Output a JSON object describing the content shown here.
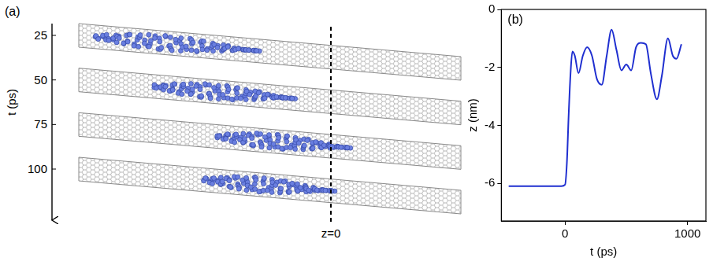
{
  "diagram": {
    "label": "(a)",
    "axis_label": "t (ps)",
    "ticks": [
      25,
      50,
      75,
      100
    ],
    "marker_label": "z=0"
  },
  "chart_data": {
    "type": "line",
    "label": "(b)",
    "x_label": "t (ps)",
    "y_label": "z (nm)",
    "x": [
      -460,
      -300,
      -150,
      -30,
      0,
      15,
      30,
      45,
      60,
      80,
      110,
      145,
      180,
      220,
      260,
      300,
      340,
      380,
      420,
      460,
      500,
      540,
      580,
      620,
      660,
      700,
      750,
      790,
      840,
      880,
      910,
      950
    ],
    "values": [
      -6.1,
      -6.1,
      -6.1,
      -6.1,
      -6.05,
      -5.3,
      -3.6,
      -2.2,
      -1.45,
      -1.6,
      -2.2,
      -1.6,
      -1.3,
      -1.6,
      -2.4,
      -2.6,
      -1.6,
      -0.7,
      -1.4,
      -2.1,
      -1.9,
      -2.1,
      -1.3,
      -1.15,
      -1.2,
      -2.2,
      -3.1,
      -2.3,
      -1.0,
      -1.6,
      -1.7,
      -1.2
    ],
    "color": "#1f2fd0",
    "xlim": [
      -520,
      1150
    ],
    "xticks": [
      0,
      1000
    ],
    "ylim": [
      -7.3,
      0
    ],
    "yticks": [
      -6,
      -4,
      -2,
      0
    ],
    "grid": false
  }
}
